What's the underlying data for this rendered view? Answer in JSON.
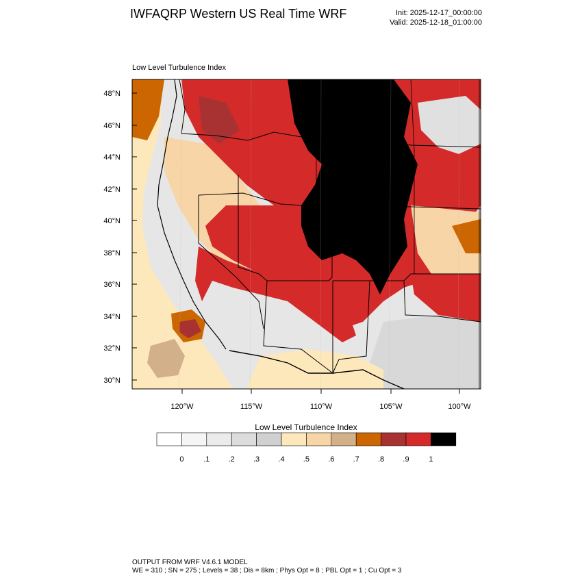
{
  "header": {
    "title": "IWFAQRP Western US Real Time WRF",
    "init": "Init: 2025-12-17_00:00:00",
    "valid": "Valid: 2025-12-18_01:00:00"
  },
  "map": {
    "field_label": "Low Level Turbulence Index",
    "lat_labels": [
      "48°N",
      "46°N",
      "44°N",
      "42°N",
      "40°N",
      "38°N",
      "36°N",
      "34°N",
      "32°N",
      "30°N"
    ],
    "lon_labels": [
      "120°W",
      "115°W",
      "110°W",
      "105°W",
      "100°W"
    ]
  },
  "colorbar": {
    "title": "Low Level Turbulence Index",
    "colors": [
      "#ffffff",
      "#f5f5f5",
      "#ebebeb",
      "#dcdcdc",
      "#d0d0d0",
      "#fde8bc",
      "#f7d5a6",
      "#d2b08a",
      "#cc6600",
      "#a83232",
      "#d42a2a",
      "#000000"
    ],
    "tick_labels": [
      "0",
      ".1",
      ".2",
      ".3",
      ".4",
      ".5",
      ".6",
      ".7",
      ".8",
      ".9",
      "1"
    ]
  },
  "footer": {
    "line1": "OUTPUT FROM WRF V4.6.1 MODEL",
    "line2": "WE = 310 ; SN = 275 ; Levels = 38 ; Dis = 8km ; Phys Opt = 8 ; PBL Opt = 1 ; Cu Opt = 3"
  }
}
